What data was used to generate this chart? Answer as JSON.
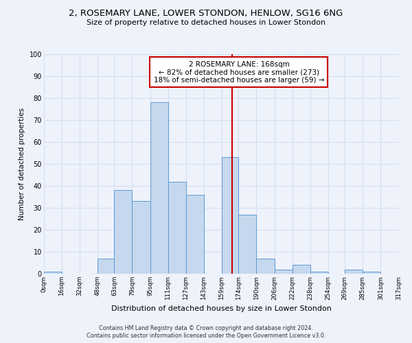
{
  "title": "2, ROSEMARY LANE, LOWER STONDON, HENLOW, SG16 6NG",
  "subtitle": "Size of property relative to detached houses in Lower Stondon",
  "xlabel": "Distribution of detached houses by size in Lower Stondon",
  "ylabel": "Number of detached properties",
  "footer_line1": "Contains HM Land Registry data © Crown copyright and database right 2024.",
  "footer_line2": "Contains public sector information licensed under the Open Government Licence v3.0.",
  "annotation_line1": "2 ROSEMARY LANE: 168sqm",
  "annotation_line2": "← 82% of detached houses are smaller (273)",
  "annotation_line3": "18% of semi-detached houses are larger (59) →",
  "property_size": 168,
  "bar_edges": [
    0,
    16,
    32,
    48,
    63,
    79,
    95,
    111,
    127,
    143,
    159,
    174,
    190,
    206,
    222,
    238,
    254,
    269,
    285,
    301,
    317
  ],
  "bar_heights": [
    1,
    0,
    0,
    7,
    38,
    33,
    78,
    42,
    36,
    0,
    53,
    27,
    7,
    2,
    4,
    1,
    0,
    2,
    1,
    0
  ],
  "tick_labels": [
    "0sqm",
    "16sqm",
    "32sqm",
    "48sqm",
    "63sqm",
    "79sqm",
    "95sqm",
    "111sqm",
    "127sqm",
    "143sqm",
    "159sqm",
    "174sqm",
    "190sqm",
    "206sqm",
    "222sqm",
    "238sqm",
    "254sqm",
    "269sqm",
    "285sqm",
    "301sqm",
    "317sqm"
  ],
  "bar_color": "#c5d8ed",
  "bar_edge_color": "#5b9bd5",
  "grid_color": "#d4dff0",
  "ref_line_color": "#cc0000",
  "background_color": "#eef2fb",
  "annotation_box_color": "#cc0000",
  "ylim": [
    0,
    100
  ]
}
